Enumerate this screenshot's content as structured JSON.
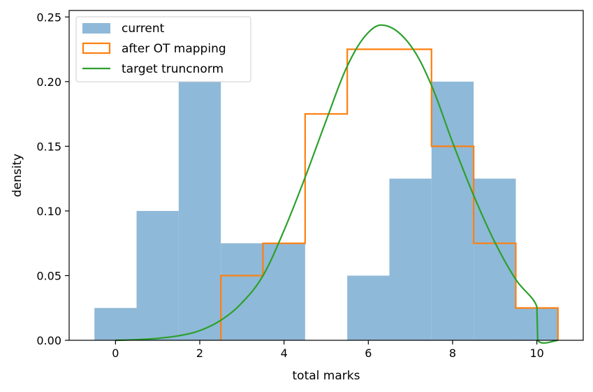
{
  "chart_data": {
    "type": "bar",
    "xlabel": "total marks",
    "ylabel": "density",
    "xlim": [
      -1.1,
      11.1
    ],
    "ylim": [
      0,
      0.255
    ],
    "xticks": [
      0,
      2,
      4,
      6,
      8,
      10
    ],
    "yticks": [
      0.0,
      0.05,
      0.1,
      0.15,
      0.2,
      0.25
    ],
    "xtick_labels": [
      "0",
      "2",
      "4",
      "6",
      "8",
      "10"
    ],
    "ytick_labels": [
      "0.00",
      "0.05",
      "0.10",
      "0.15",
      "0.20",
      "0.25"
    ],
    "bin_edges": [
      -0.5,
      0.5,
      1.5,
      2.5,
      3.5,
      4.5,
      5.5,
      6.5,
      7.5,
      8.5,
      9.5,
      10.5
    ],
    "legend_position": "upper-left",
    "grid": false,
    "series": [
      {
        "name": "current",
        "kind": "histogram-filled",
        "color": "#8fb9d8",
        "values": [
          0.025,
          0.1,
          0.2,
          0.075,
          0.075,
          0.0,
          0.05,
          0.125,
          0.2,
          0.125,
          0.025
        ]
      },
      {
        "name": "after OT mapping",
        "kind": "histogram-step",
        "color": "#ff7f0e",
        "values": [
          0.0,
          0.0,
          0.0,
          0.05,
          0.075,
          0.175,
          0.225,
          0.225,
          0.15,
          0.075,
          0.025
        ]
      },
      {
        "name": "target truncnorm",
        "kind": "line",
        "color": "#2ca02c",
        "x": [
          0,
          0.5,
          1,
          1.5,
          2,
          2.5,
          3,
          3.5,
          4,
          4.5,
          5,
          5.5,
          6,
          6.45,
          7,
          7.5,
          8,
          8.5,
          9,
          9.5,
          10,
          10.02,
          10.5
        ],
        "y": [
          0.0,
          0.0005,
          0.0015,
          0.0035,
          0.0075,
          0.0155,
          0.029,
          0.05,
          0.085,
          0.126,
          0.17,
          0.212,
          0.238,
          0.243,
          0.228,
          0.197,
          0.153,
          0.112,
          0.076,
          0.047,
          0.026,
          0.0,
          0.0
        ]
      }
    ]
  }
}
